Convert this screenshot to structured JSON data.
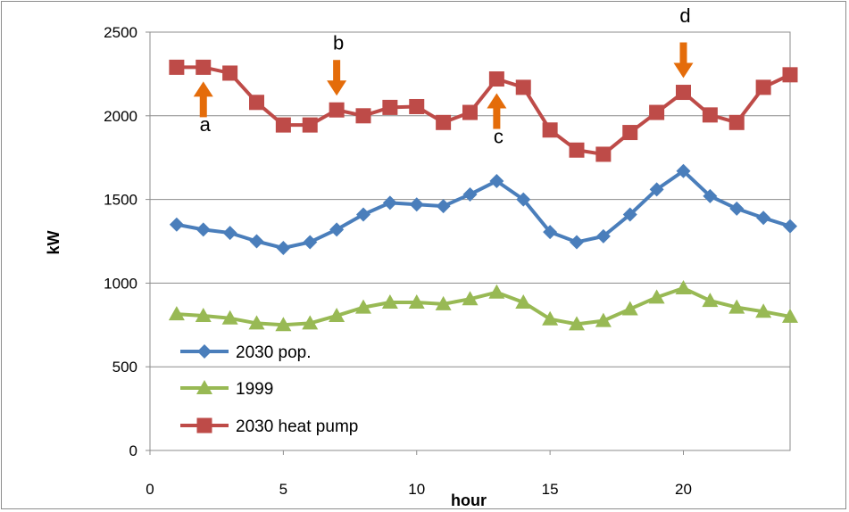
{
  "chart_data": {
    "type": "line",
    "title": "",
    "xlabel": "hour",
    "ylabel": "kW",
    "xlim": [
      0,
      24
    ],
    "ylim": [
      0,
      2500
    ],
    "xticks": [
      "0",
      "5",
      "10",
      "15",
      "20"
    ],
    "yticks": [
      "0",
      "500",
      "1000",
      "1500",
      "2000",
      "2500"
    ],
    "grid": "horizontal",
    "legend_position": "bottom-left",
    "x": [
      1,
      2,
      3,
      4,
      5,
      6,
      7,
      8,
      9,
      10,
      11,
      12,
      13,
      14,
      15,
      16,
      17,
      18,
      19,
      20,
      21,
      22,
      23,
      24
    ],
    "series": [
      {
        "name": "2030 pop.",
        "color": "#4a7ebb",
        "marker": "diamond",
        "values": [
          1350,
          1320,
          1300,
          1250,
          1210,
          1245,
          1320,
          1410,
          1480,
          1470,
          1460,
          1530,
          1610,
          1500,
          1305,
          1245,
          1280,
          1410,
          1560,
          1670,
          1520,
          1445,
          1390,
          1340
        ]
      },
      {
        "name": "1999",
        "color": "#98b954",
        "marker": "triangle",
        "values": [
          815,
          805,
          790,
          760,
          750,
          760,
          805,
          855,
          885,
          885,
          875,
          905,
          945,
          885,
          785,
          755,
          775,
          845,
          915,
          970,
          895,
          855,
          830,
          800
        ]
      },
      {
        "name": "2030 heat pump",
        "color": "#be4b48",
        "marker": "square",
        "values": [
          2290,
          2290,
          2255,
          2080,
          1945,
          1945,
          2035,
          2000,
          2050,
          2055,
          1960,
          2020,
          2220,
          2170,
          1915,
          1795,
          1770,
          1900,
          2020,
          2140,
          2005,
          1960,
          2170,
          2245
        ]
      }
    ],
    "annotations": [
      {
        "label": "a",
        "x": 2,
        "direction": "up",
        "target": 2290,
        "text_y": 1950
      },
      {
        "label": "b",
        "x": 7,
        "direction": "down",
        "target": 2035,
        "text_y": 2440
      },
      {
        "label": "c",
        "x": 13,
        "direction": "up",
        "target": 2220,
        "text_y": 1880
      },
      {
        "label": "d",
        "x": 20,
        "direction": "down",
        "target": 2140,
        "text_y": 2600
      }
    ],
    "annotation_color": "#e46c0a"
  }
}
